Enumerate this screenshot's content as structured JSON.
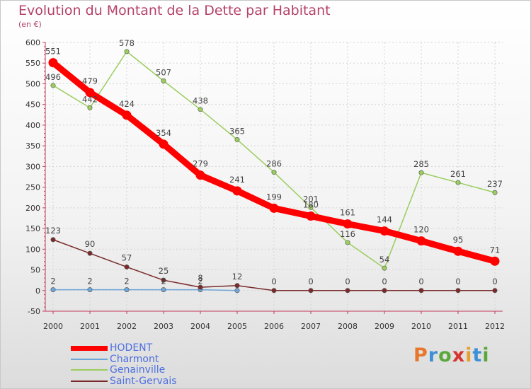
{
  "title": "Evolution du Montant de la Dette par Habitant",
  "subtitle": "(en €)",
  "logo": {
    "letters": [
      "P",
      "r",
      "o",
      "x",
      "i",
      "t",
      "i"
    ],
    "colors": [
      "#e8762c",
      "#3d8fd6",
      "#5aa83a",
      "#d6332c",
      "#e8a02c",
      "#3d8fd6",
      "#5aa83a"
    ]
  },
  "chart_data": {
    "type": "line",
    "title": "Evolution du Montant de la Dette par Habitant",
    "subtitle": "(en €)",
    "x": [
      "2000",
      "2001",
      "2002",
      "2003",
      "2004",
      "2005",
      "2006",
      "2007",
      "2008",
      "2009",
      "2010",
      "2011",
      "2012"
    ],
    "ylim": [
      -50,
      600
    ],
    "yticks": [
      "-50",
      "0",
      "50",
      "100",
      "150",
      "200",
      "250",
      "300",
      "350",
      "400",
      "450",
      "500",
      "550",
      "600"
    ],
    "grid": true,
    "legend_position": "bottom-left",
    "series": [
      {
        "name": "HODENT",
        "color": "#ff0000",
        "values": [
          551,
          479,
          424,
          354,
          279,
          241,
          199,
          180,
          161,
          144,
          120,
          95,
          71
        ],
        "labels": [
          "551",
          "479",
          "424",
          "354",
          "279",
          "241",
          "199",
          "180",
          "161",
          "144",
          "120",
          "95",
          "71"
        ]
      },
      {
        "name": "Charmont",
        "color": "#6ea6d8",
        "values": [
          2,
          2,
          2,
          2,
          2,
          0,
          null,
          null,
          null,
          null,
          null,
          null,
          null
        ],
        "labels": [
          "2",
          "2",
          "2",
          "2",
          "2",
          "",
          "",
          "",
          "",
          "",
          "",
          "",
          ""
        ]
      },
      {
        "name": "Genainville",
        "color": "#9acd5e",
        "values": [
          496,
          442,
          578,
          507,
          438,
          365,
          286,
          201,
          116,
          54,
          285,
          261,
          237
        ],
        "labels": [
          "496",
          "442",
          "578",
          "507",
          "438",
          "365",
          "286",
          "201",
          "116",
          "54",
          "285",
          "261",
          "237"
        ]
      },
      {
        "name": "Saint-Gervais",
        "color": "#7a2a2a",
        "values": [
          123,
          90,
          57,
          25,
          8,
          12,
          0,
          0,
          0,
          0,
          0,
          0,
          0
        ],
        "labels": [
          "123",
          "90",
          "57",
          "25",
          "8",
          "12",
          "0",
          "0",
          "0",
          "0",
          "0",
          "0",
          "0"
        ]
      }
    ]
  }
}
